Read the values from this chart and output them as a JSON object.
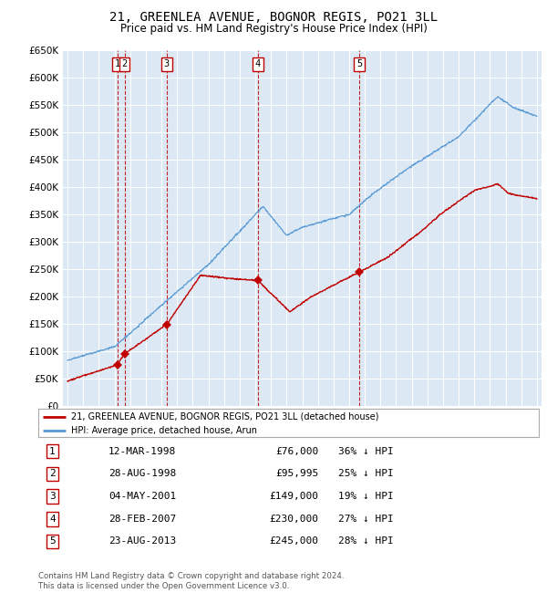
{
  "title": "21, GREENLEA AVENUE, BOGNOR REGIS, PO21 3LL",
  "subtitle": "Price paid vs. HM Land Registry's House Price Index (HPI)",
  "ylim": [
    0,
    650000
  ],
  "yticks": [
    0,
    50000,
    100000,
    150000,
    200000,
    250000,
    300000,
    350000,
    400000,
    450000,
    500000,
    550000,
    600000,
    650000
  ],
  "background_color": "#dce9f5",
  "grid_color": "#ffffff",
  "hpi_line_color": "#5b9bd5",
  "price_line_color": "#c00000",
  "sale_marker_color": "#c00000",
  "title_fontsize": 10,
  "subtitle_fontsize": 8.5,
  "legend_label_hpi": "HPI: Average price, detached house, Arun",
  "legend_label_price": "21, GREENLEA AVENUE, BOGNOR REGIS, PO21 3LL (detached house)",
  "sales": [
    {
      "num": 1,
      "date_num": 1998.19,
      "price": 76000,
      "label": "1"
    },
    {
      "num": 2,
      "date_num": 1998.65,
      "price": 95995,
      "label": "2"
    },
    {
      "num": 3,
      "date_num": 2001.34,
      "price": 149000,
      "label": "3"
    },
    {
      "num": 4,
      "date_num": 2007.16,
      "price": 230000,
      "label": "4"
    },
    {
      "num": 5,
      "date_num": 2013.64,
      "price": 245000,
      "label": "5"
    }
  ],
  "table_rows": [
    {
      "num": "1",
      "date": "12-MAR-1998",
      "price": "£76,000",
      "pct": "36% ↓ HPI"
    },
    {
      "num": "2",
      "date": "28-AUG-1998",
      "price": "£95,995",
      "pct": "25% ↓ HPI"
    },
    {
      "num": "3",
      "date": "04-MAY-2001",
      "price": "£149,000",
      "pct": "19% ↓ HPI"
    },
    {
      "num": "4",
      "date": "28-FEB-2007",
      "price": "£230,000",
      "pct": "27% ↓ HPI"
    },
    {
      "num": "5",
      "date": "23-AUG-2013",
      "price": "£245,000",
      "pct": "28% ↓ HPI"
    }
  ],
  "footnote": "Contains HM Land Registry data © Crown copyright and database right 2024.\nThis data is licensed under the Open Government Licence v3.0.",
  "xlim_left": 1994.7,
  "xlim_right": 2025.3,
  "xticks": [
    1995,
    1996,
    1997,
    1998,
    1999,
    2000,
    2001,
    2002,
    2003,
    2004,
    2005,
    2006,
    2007,
    2008,
    2009,
    2010,
    2011,
    2012,
    2013,
    2014,
    2015,
    2016,
    2017,
    2018,
    2019,
    2020,
    2021,
    2022,
    2023,
    2024,
    2025
  ]
}
